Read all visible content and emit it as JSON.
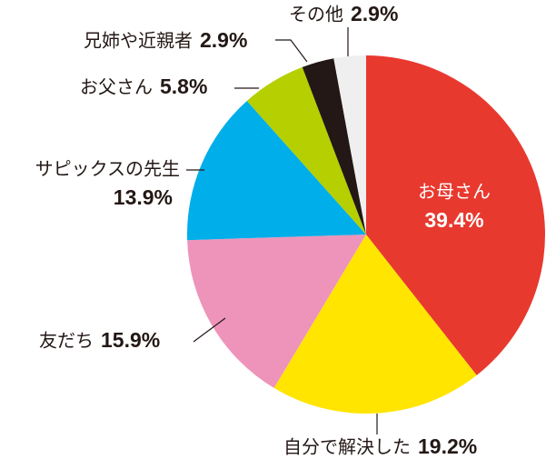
{
  "chart_data": {
    "type": "pie",
    "categories": [
      "お母さん",
      "自分で解決した",
      "友だち",
      "サピックスの先生",
      "お父さん",
      "兄姉や近親者",
      "その他"
    ],
    "values": [
      39.4,
      19.2,
      15.9,
      13.9,
      5.8,
      2.9,
      2.9
    ],
    "value_labels": [
      "39.4%",
      "19.2%",
      "15.9%",
      "13.9%",
      "5.8%",
      "2.9%",
      "2.9%"
    ],
    "colors": [
      "#e8392f",
      "#ffe500",
      "#ee94bb",
      "#00aee9",
      "#b5cf00",
      "#231815",
      "#efefef"
    ]
  }
}
